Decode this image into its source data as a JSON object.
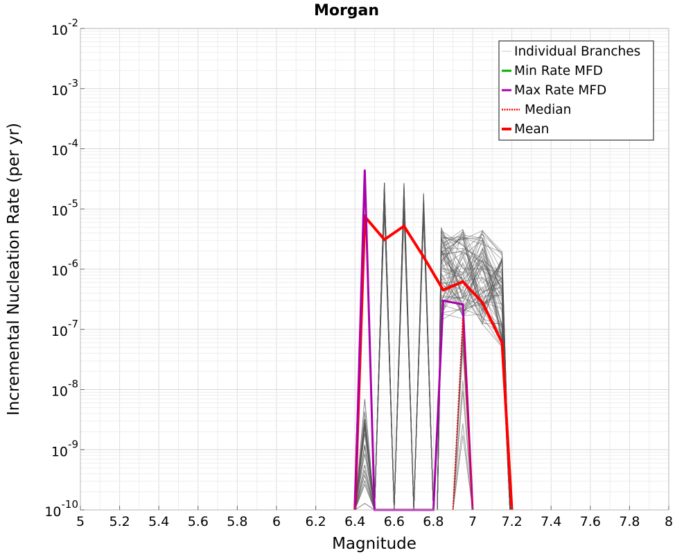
{
  "chart_data": {
    "type": "line",
    "title": "Morgan",
    "xlabel": "Magnitude",
    "ylabel": "Incremental Nucleation Rate (per yr)",
    "xlim": [
      5,
      8
    ],
    "ylim": [
      1e-10,
      0.01
    ],
    "y_scale": "log",
    "grid": true,
    "legend_position": "top-right",
    "x_ticks": [
      "5",
      "5.2",
      "5.4",
      "5.6",
      "5.8",
      "6",
      "6.2",
      "6.4",
      "6.6",
      "6.8",
      "7",
      "7.2",
      "7.4",
      "7.6",
      "7.8",
      "8"
    ],
    "y_tick_exponents": [
      -10,
      -9,
      -8,
      -7,
      -6,
      -5,
      -4,
      -3,
      -2
    ],
    "legend": [
      {
        "label": "Individual Branches",
        "color": "#c8c8c8",
        "style": "thin"
      },
      {
        "label": "Min Rate MFD",
        "color": "#00b000",
        "style": "solid"
      },
      {
        "label": "Max Rate MFD",
        "color": "#aa00aa",
        "style": "solid"
      },
      {
        "label": "Median",
        "color": "#ff0000",
        "style": "dotted"
      },
      {
        "label": "Mean",
        "color": "#ff0000",
        "style": "thick"
      }
    ],
    "branch_bins": [
      6.45,
      6.55,
      6.65,
      6.75,
      6.85,
      6.95,
      7.05,
      7.15
    ],
    "series": [
      {
        "name": "Mean",
        "color": "#ff0000",
        "x": [
          6.4,
          6.45,
          6.55,
          6.65,
          6.75,
          6.85,
          6.95,
          7.05,
          7.15,
          7.2
        ],
        "y": [
          1e-10,
          7.5e-06,
          3.1e-06,
          5.2e-06,
          1.6e-06,
          4.5e-07,
          6.2e-07,
          2.8e-07,
          6e-08,
          1e-10
        ]
      },
      {
        "name": "Max Rate MFD",
        "color": "#aa00aa",
        "x": [
          6.4,
          6.45,
          6.5,
          6.8,
          6.85,
          6.95,
          7.0
        ],
        "y": [
          1e-10,
          4.5e-05,
          1e-10,
          1e-10,
          3e-07,
          2.6e-07,
          1e-10
        ]
      },
      {
        "name": "Median",
        "color": "#ff0000",
        "x": [
          6.9,
          6.95,
          7.0
        ],
        "y": [
          1e-10,
          1.5e-07,
          1e-10
        ]
      }
    ]
  }
}
